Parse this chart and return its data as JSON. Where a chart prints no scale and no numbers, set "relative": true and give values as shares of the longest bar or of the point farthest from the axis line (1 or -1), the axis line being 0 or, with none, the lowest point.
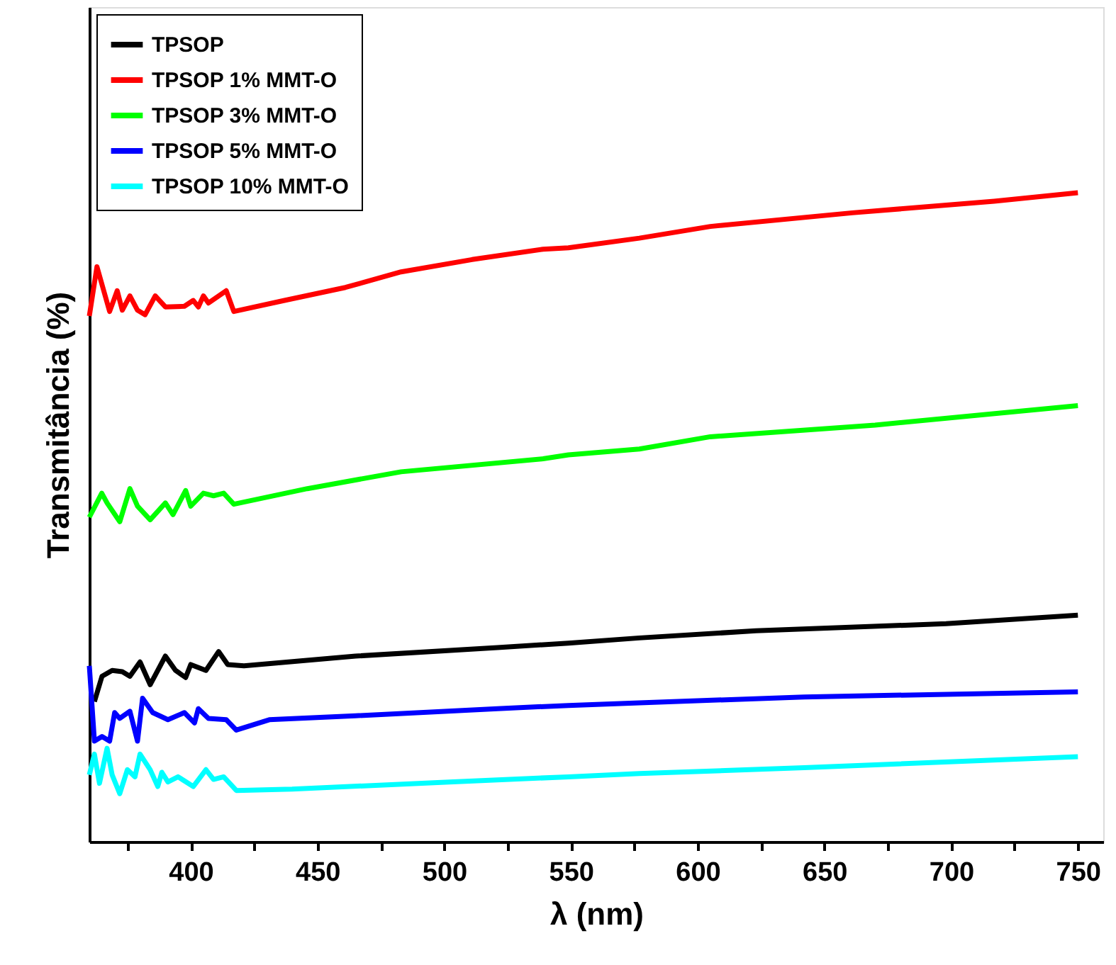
{
  "chart_data": {
    "type": "line",
    "xlabel": "λ (nm)",
    "ylabel": "Transmitância (%)",
    "relative": true,
    "legend": "top left",
    "line_style": "solid",
    "xlim": [
      360,
      760
    ],
    "xticks": [
      {
        "value": 375,
        "label": null
      },
      400,
      {
        "value": 425,
        "label": null
      },
      450,
      {
        "value": 475,
        "label": null
      },
      500,
      {
        "value": 525,
        "label": null
      },
      550,
      {
        "value": 575,
        "label": null
      },
      600,
      {
        "value": 625,
        "label": null
      },
      650,
      {
        "value": 675,
        "label": null
      },
      700,
      {
        "value": 725,
        "label": null
      },
      750
    ],
    "series": [
      {
        "name": "TPSOP",
        "color": "#000000",
        "x": [
          362,
          365,
          369,
          373,
          376,
          380,
          384,
          390,
          394,
          398,
          400,
          406,
          411,
          414.6,
          421,
          465,
          521,
          549,
          577,
          623,
          698,
          750
        ],
        "values": [
          0.216,
          0.255,
          0.264,
          0.262,
          0.255,
          0.277,
          0.242,
          0.286,
          0.264,
          0.253,
          0.273,
          0.264,
          0.293,
          0.273,
          0.271,
          0.286,
          0.299,
          0.306,
          0.314,
          0.325,
          0.336,
          0.349
        ]
      },
      {
        "name": "TPSOP 1% MMT-O",
        "color": "#ff0000",
        "x": [
          360,
          363,
          368,
          371,
          373,
          376,
          379,
          382,
          386,
          390,
          397.5,
          401,
          403,
          405,
          407,
          414,
          417,
          437,
          461,
          483,
          511,
          539,
          549,
          577,
          605,
          661,
          717,
          750
        ],
        "values": [
          0.81,
          0.886,
          0.817,
          0.849,
          0.819,
          0.841,
          0.819,
          0.812,
          0.841,
          0.824,
          0.825,
          0.834,
          0.824,
          0.841,
          0.83,
          0.849,
          0.817,
          0.834,
          0.854,
          0.878,
          0.897,
          0.913,
          0.915,
          0.93,
          0.948,
          0.969,
          0.987,
          1.0
        ]
      },
      {
        "name": "TPSOP 3% MMT-O",
        "color": "#00ff00",
        "x": [
          360,
          364.9,
          367,
          372,
          376,
          379,
          384,
          390,
          393,
          398,
          400,
          405,
          409,
          413,
          417,
          446,
          483,
          539,
          549,
          577,
          605,
          670,
          750
        ],
        "values": [
          0.5,
          0.537,
          0.522,
          0.493,
          0.544,
          0.517,
          0.496,
          0.522,
          0.504,
          0.541,
          0.517,
          0.537,
          0.533,
          0.537,
          0.52,
          0.544,
          0.57,
          0.59,
          0.596,
          0.605,
          0.624,
          0.642,
          0.672
        ]
      },
      {
        "name": "TPSOP 5% MMT-O",
        "color": "#0000ff",
        "x": [
          360,
          362,
          365,
          368,
          370,
          372,
          376,
          379,
          381,
          385,
          391,
          397.5,
          401.5,
          403,
          407,
          414,
          418,
          431,
          465,
          521,
          549,
          577,
          642,
          750
        ],
        "values": [
          0.271,
          0.155,
          0.162,
          0.155,
          0.199,
          0.19,
          0.201,
          0.155,
          0.221,
          0.199,
          0.188,
          0.199,
          0.183,
          0.205,
          0.19,
          0.188,
          0.172,
          0.188,
          0.194,
          0.205,
          0.21,
          0.214,
          0.223,
          0.231
        ]
      },
      {
        "name": "TPSOP 10% MMT-O",
        "color": "#00ffff",
        "x": [
          360,
          362,
          364,
          367,
          369,
          372,
          375,
          378,
          380,
          384,
          387,
          388.6,
          391,
          395,
          399,
          401,
          406,
          409,
          413,
          418,
          440,
          502,
          549,
          577,
          642,
          750
        ],
        "values": [
          0.103,
          0.135,
          0.09,
          0.144,
          0.103,
          0.074,
          0.111,
          0.1,
          0.135,
          0.111,
          0.085,
          0.107,
          0.092,
          0.1,
          0.09,
          0.085,
          0.111,
          0.096,
          0.1,
          0.079,
          0.081,
          0.092,
          0.1,
          0.105,
          0.114,
          0.131
        ]
      }
    ]
  }
}
